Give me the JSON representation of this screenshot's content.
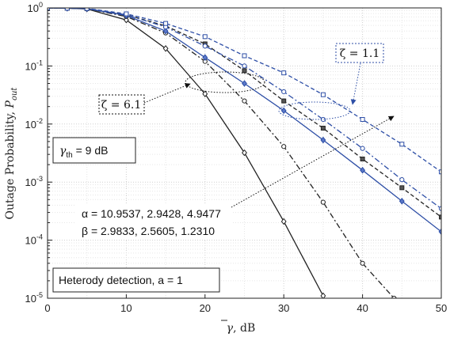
{
  "chart_data": {
    "type": "line",
    "title": "",
    "xlabel": "γ̄, dB",
    "ylabel": "Outage Probability, P_out",
    "ylabel_main": "Outage Probability, ",
    "ylabel_sym": "P",
    "ylabel_sub": "out",
    "xlabel_sym": "γ",
    "xlabel_unit": ", dB",
    "xlim": [
      0,
      50
    ],
    "ylim": [
      1e-05,
      1
    ],
    "yscale": "log",
    "grid": true,
    "x_ticks": [
      0,
      10,
      20,
      30,
      40,
      50
    ],
    "y_ticks": [
      {
        "value": 1,
        "base": "10",
        "exp": "0"
      },
      {
        "value": 0.1,
        "base": "10",
        "exp": "-1"
      },
      {
        "value": 0.01,
        "base": "10",
        "exp": "-2"
      },
      {
        "value": 0.001,
        "base": "10",
        "exp": "-3"
      },
      {
        "value": 0.0001,
        "base": "10",
        "exp": "-4"
      },
      {
        "value": 1e-05,
        "base": "10",
        "exp": "-5"
      }
    ],
    "series": [
      {
        "color": "#222222",
        "dash": "",
        "marker": "diamond",
        "x": [
          0,
          2.5,
          5,
          10,
          15,
          20,
          25,
          30,
          35
        ],
        "y": [
          1.0,
          0.99,
          0.96,
          0.62,
          0.2,
          0.033,
          0.0032,
          0.00021,
          1.1e-05
        ]
      },
      {
        "color": "#222222",
        "dash": "7 3 2 3",
        "marker": "circle",
        "x": [
          0,
          2.5,
          5,
          10,
          15,
          20,
          25,
          30,
          35,
          40,
          44
        ],
        "y": [
          1.0,
          0.99,
          0.97,
          0.71,
          0.37,
          0.12,
          0.025,
          0.0041,
          0.00045,
          4e-05,
          1e-05
        ]
      },
      {
        "color": "#222222",
        "dash": "5 3",
        "marker": "square",
        "x": [
          0,
          2.5,
          5,
          10,
          15,
          20,
          25,
          30,
          35,
          40,
          45,
          50
        ],
        "y": [
          1.0,
          0.99,
          0.97,
          0.76,
          0.49,
          0.24,
          0.083,
          0.025,
          0.0085,
          0.0025,
          0.0008,
          0.00025
        ]
      },
      {
        "color": "#2d4ea6",
        "dash": "",
        "marker": "diamond",
        "x": [
          0,
          2.5,
          5,
          10,
          15,
          20,
          25,
          30,
          35,
          40,
          45,
          50
        ],
        "y": [
          1.0,
          0.99,
          0.97,
          0.74,
          0.4,
          0.14,
          0.05,
          0.017,
          0.0053,
          0.0016,
          0.00047,
          0.00014
        ]
      },
      {
        "color": "#2d4ea6",
        "dash": "7 3 2 3",
        "marker": "circle",
        "x": [
          0,
          2.5,
          5,
          10,
          15,
          20,
          25,
          30,
          35,
          40,
          45,
          50
        ],
        "y": [
          1.0,
          0.99,
          0.97,
          0.76,
          0.47,
          0.22,
          0.1,
          0.036,
          0.012,
          0.0038,
          0.0011,
          0.00035
        ]
      },
      {
        "color": "#2d4ea6",
        "dash": "5 3",
        "marker": "square",
        "x": [
          0,
          2.5,
          5,
          10,
          15,
          20,
          25,
          30,
          35,
          40,
          45,
          50
        ],
        "y": [
          1.0,
          0.99,
          0.98,
          0.79,
          0.54,
          0.32,
          0.15,
          0.076,
          0.032,
          0.012,
          0.0045,
          0.0015
        ]
      }
    ],
    "annotations": {
      "zeta_61": {
        "text": "ζ = 6.1"
      },
      "zeta_11": {
        "text": "ζ = 1.1"
      },
      "gamma_th": {
        "sym": "γ",
        "sub": "th",
        "rest": " = 9 dB"
      },
      "alpha_line": "α = 10.9537, 2.9428, 4.9477",
      "beta_line": "β = 2.9833, 2.5605, 1.2310",
      "detection": "Heterody detection, a = 1"
    }
  }
}
